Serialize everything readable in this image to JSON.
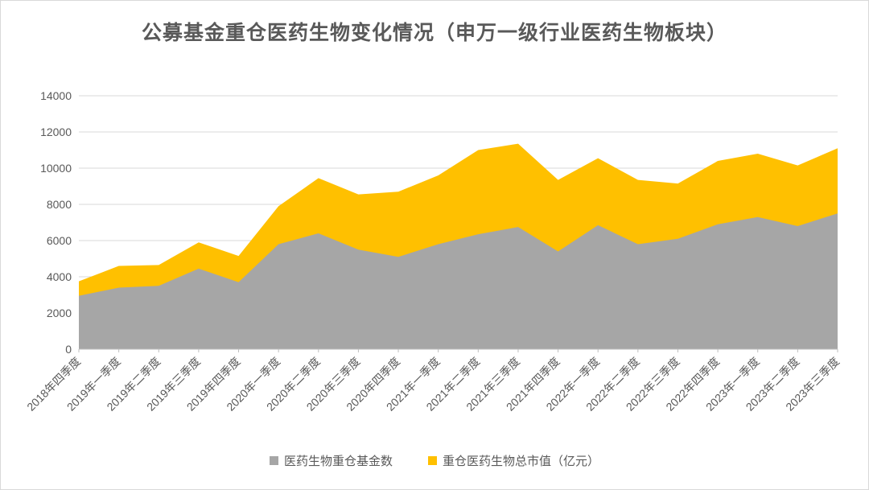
{
  "title": "公募基金重仓医药生物变化情况（申万一级行业医药生物板块）",
  "colors": {
    "fund_count": "#A6A6A6",
    "market_value": "#FFC000",
    "gridline": "#D9D9D9",
    "axis_line": "#BFBFBF",
    "text": "#595959",
    "title_text": "#595959",
    "background": "#FFFFFF"
  },
  "legend": {
    "items": [
      {
        "label": "医药生物重仓基金数",
        "color": "#A6A6A6"
      },
      {
        "label": "重仓医药生物总市值（亿元）",
        "color": "#FFC000"
      }
    ]
  },
  "chart_data": {
    "type": "area",
    "overlapping": true,
    "title": "公募基金重仓医药生物变化情况（申万一级行业医药生物板块）",
    "xlabel": "",
    "ylabel": "",
    "ylim": [
      0,
      14000
    ],
    "yticks": [
      0,
      2000,
      4000,
      6000,
      8000,
      10000,
      12000,
      14000
    ],
    "grid": true,
    "legend_position": "bottom",
    "x_label_rotation": -45,
    "categories": [
      "2018年四季度",
      "2019年一季度",
      "2019年二季度",
      "2019年三季度",
      "2019年四季度",
      "2020年一季度",
      "2020年二季度",
      "2020年三季度",
      "2020年四季度",
      "2021年一季度",
      "2021年二季度",
      "2021年三季度",
      "2021年四季度",
      "2022年一季度",
      "2022年二季度",
      "2022年三季度",
      "2022年四季度",
      "2023年一季度",
      "2023年二季度",
      "2023年三季度"
    ],
    "series": [
      {
        "name": "医药生物重仓基金数",
        "color": "#A6A6A6",
        "values": [
          2950,
          3400,
          3500,
          4450,
          3700,
          5800,
          6400,
          5500,
          5100,
          5800,
          6350,
          6750,
          5400,
          6850,
          5800,
          6100,
          6900,
          7300,
          6800,
          7500
        ]
      },
      {
        "name": "重仓医药生物总市值（亿元）",
        "color": "#FFC000",
        "values": [
          3750,
          4600,
          4650,
          5900,
          5150,
          7900,
          9450,
          8550,
          8700,
          9600,
          11000,
          11350,
          9350,
          10550,
          9350,
          9150,
          10400,
          10800,
          10150,
          11100
        ]
      }
    ]
  }
}
